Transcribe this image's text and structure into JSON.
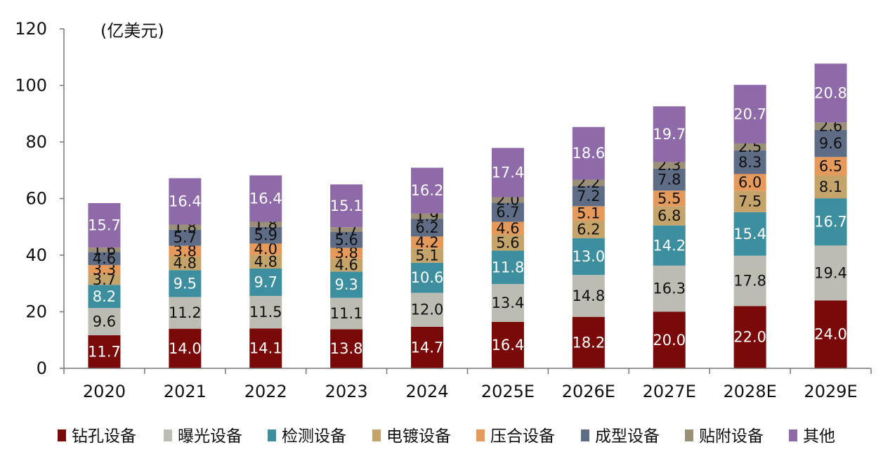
{
  "chart_data": {
    "type": "bar",
    "stacked": true,
    "unit_label": "(亿美元)",
    "categories": [
      "2020",
      "2021",
      "2022",
      "2023",
      "2024",
      "2025E",
      "2026E",
      "2027E",
      "2028E",
      "2029E"
    ],
    "ylim": [
      0,
      120
    ],
    "yticks": [
      0,
      20,
      40,
      60,
      80,
      100,
      120
    ],
    "grid": false,
    "legend_position": "bottom",
    "series": [
      {
        "name": "钻孔设备",
        "color": "#7a0a0a",
        "label_color": "#ffffff",
        "values": [
          11.7,
          14.0,
          14.1,
          13.8,
          14.7,
          16.4,
          18.2,
          20.0,
          22.0,
          24.0
        ]
      },
      {
        "name": "曝光设备",
        "color": "#bdbcb2",
        "label_color": "#111111",
        "values": [
          9.6,
          11.2,
          11.5,
          11.1,
          12.0,
          13.4,
          14.8,
          16.3,
          17.8,
          19.4
        ]
      },
      {
        "name": "检测设备",
        "color": "#3d8fa0",
        "label_color": "#ffffff",
        "values": [
          8.2,
          9.5,
          9.7,
          9.3,
          10.6,
          11.8,
          13.0,
          14.2,
          15.4,
          16.7
        ]
      },
      {
        "name": "电镀设备",
        "color": "#c4a46a",
        "label_color": "#111111",
        "values": [
          3.7,
          4.8,
          4.8,
          4.6,
          5.1,
          5.6,
          6.2,
          6.8,
          7.5,
          8.1
        ]
      },
      {
        "name": "压合设备",
        "color": "#e59a5c",
        "label_color": "#111111",
        "values": [
          3.3,
          3.8,
          4.0,
          3.8,
          4.2,
          4.6,
          5.1,
          5.5,
          6.0,
          6.5
        ]
      },
      {
        "name": "成型设备",
        "color": "#5f6c86",
        "label_color": "#111111",
        "values": [
          4.6,
          5.7,
          5.9,
          5.6,
          6.2,
          6.7,
          7.2,
          7.8,
          8.3,
          9.6
        ]
      },
      {
        "name": "贴附设备",
        "color": "#9b8f78",
        "label_color": "#111111",
        "values": [
          1.6,
          1.8,
          1.8,
          1.7,
          1.9,
          2.0,
          2.2,
          2.3,
          2.5,
          2.6
        ]
      },
      {
        "name": "其他",
        "color": "#8e6aa8",
        "label_color": "#ffffff",
        "values": [
          15.7,
          16.4,
          16.4,
          15.1,
          16.2,
          17.4,
          18.6,
          19.7,
          20.7,
          20.8
        ]
      }
    ]
  }
}
